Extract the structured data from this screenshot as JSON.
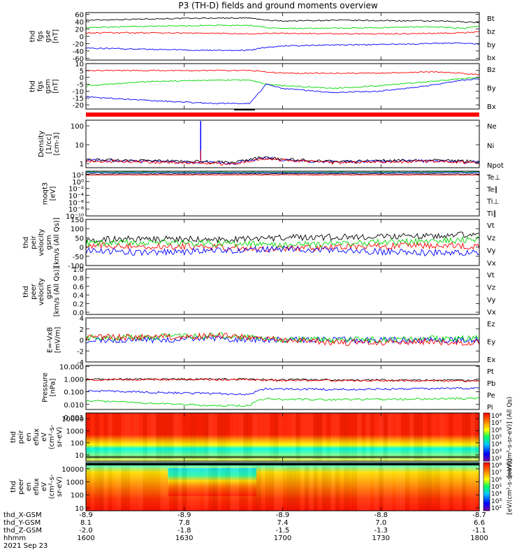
{
  "title": "P3 (TH-D) fields and ground moments overview",
  "colors": {
    "black": "#000000",
    "red": "#ff0000",
    "green": "#00d800",
    "blue": "#0000ff"
  },
  "time_axis": {
    "minutes": [
      0,
      30,
      60,
      90,
      120
    ],
    "row_labels": [
      "thd_X-GSM",
      "thd_Y-GSM",
      "thd_Z-GSM",
      "hhmm"
    ],
    "x_gsm": [
      "-8.9",
      "-8.9",
      "-8.9",
      "-8.8",
      "-8.7"
    ],
    "y_gsm": [
      "8.1",
      "7.8",
      "7.4",
      "7.0",
      "6.6"
    ],
    "z_gsm": [
      "-2.0",
      "-1.8",
      "-1.5",
      "-1.3",
      "-1.1"
    ],
    "hhmm": [
      "1600",
      "1630",
      "1700",
      "1730",
      "1800"
    ],
    "date": "2021 Sep 23"
  },
  "chart_data": [
    {
      "type": "line",
      "ylabel": [
        "thd",
        "fgs",
        "gse",
        "[nT]"
      ],
      "ylim": [
        -65,
        65
      ],
      "yticks": [
        "60",
        "40",
        "20",
        "0",
        "-20",
        "-40",
        "-60"
      ],
      "ytick_values": [
        60,
        40,
        20,
        0,
        -20,
        -40,
        -60
      ],
      "legend": [
        {
          "name": "Bt",
          "color": "#000000"
        },
        {
          "name": "bz",
          "color": "#ff0000"
        },
        {
          "name": "by",
          "color": "#00d800"
        },
        {
          "name": "bx",
          "color": "#0000ff"
        }
      ],
      "series": [
        {
          "name": "Bt",
          "color": "#000000",
          "x": [
            0,
            20,
            40,
            50,
            55,
            60,
            75,
            90,
            105,
            115,
            120
          ],
          "y": [
            44,
            48,
            50,
            50,
            44,
            42,
            44,
            43,
            42,
            40,
            38
          ]
        },
        {
          "name": "by",
          "color": "#00d800",
          "x": [
            0,
            20,
            40,
            50,
            55,
            60,
            75,
            90,
            105,
            115,
            120
          ],
          "y": [
            24,
            28,
            30,
            30,
            24,
            22,
            22,
            24,
            26,
            22,
            28
          ]
        },
        {
          "name": "bz",
          "color": "#ff0000",
          "x": [
            0,
            20,
            40,
            50,
            55,
            60,
            75,
            90,
            105,
            115,
            120
          ],
          "y": [
            10,
            10,
            8,
            7,
            8,
            8,
            7,
            7,
            8,
            10,
            12
          ]
        },
        {
          "name": "bx",
          "color": "#0000ff",
          "x": [
            0,
            20,
            40,
            50,
            55,
            60,
            75,
            90,
            105,
            115,
            120
          ],
          "y": [
            -32,
            -36,
            -38,
            -38,
            -30,
            -26,
            -24,
            -22,
            -20,
            -18,
            -22
          ]
        }
      ]
    },
    {
      "type": "line",
      "ylabel": [
        "thd",
        "fgs",
        "gsm",
        "[nT]"
      ],
      "ylim": [
        -23,
        10
      ],
      "yticks": [
        "10",
        "5",
        "0",
        "-5",
        "-10",
        "-15",
        "-20"
      ],
      "ytick_values": [
        10,
        5,
        0,
        -5,
        -10,
        -15,
        -20
      ],
      "legend": [
        {
          "name": "Bz",
          "color": "#ff0000"
        },
        {
          "name": "By",
          "color": "#00d800"
        },
        {
          "name": "Bx",
          "color": "#0000ff"
        }
      ],
      "series": [
        {
          "name": "Bz",
          "color": "#ff0000",
          "x": [
            0,
            20,
            40,
            50,
            55,
            60,
            75,
            90,
            105,
            115,
            120
          ],
          "y": [
            5,
            5,
            5,
            5,
            4,
            3,
            3,
            3,
            4,
            3,
            2
          ]
        },
        {
          "name": "By",
          "color": "#00d800",
          "x": [
            0,
            20,
            40,
            50,
            55,
            60,
            75,
            90,
            105,
            115,
            120
          ],
          "y": [
            -6,
            -3,
            -2,
            -2,
            -5,
            -6,
            -8,
            -6,
            -3,
            -1,
            0
          ]
        },
        {
          "name": "Bx",
          "color": "#0000ff",
          "x": [
            0,
            20,
            40,
            50,
            55,
            60,
            75,
            90,
            105,
            115,
            120
          ],
          "y": [
            -14,
            -17,
            -19,
            -19,
            -5,
            -8,
            -11,
            -10,
            -6,
            -2,
            -1
          ]
        }
      ]
    },
    {
      "type": "line",
      "ylabel": [
        "Density",
        "[1/cc]",
        "[cm-3]"
      ],
      "scale": "log",
      "ylim": [
        0.6,
        200
      ],
      "yticks": [
        "100",
        "10",
        "1"
      ],
      "ytick_values": [
        100,
        10,
        1
      ],
      "legend": [
        {
          "name": "Ne",
          "color": "#ff0000"
        },
        {
          "name": "Ni",
          "color": "#000000"
        },
        {
          "name": "Npot",
          "color": "#0000ff"
        }
      ],
      "series": [
        {
          "name": "Npot",
          "color": "#0000ff",
          "x": [
            0,
            20,
            35,
            45,
            55,
            60,
            75,
            90,
            105,
            120
          ],
          "y": [
            1.5,
            1.3,
            1.2,
            1.0,
            2.0,
            1.6,
            1.2,
            1.3,
            1.4,
            1.2
          ]
        },
        {
          "name": "Ni",
          "color": "#000000",
          "x": [
            0,
            20,
            35,
            45,
            55,
            60,
            75,
            90,
            105,
            120
          ],
          "y": [
            1.6,
            1.4,
            1.3,
            1.1,
            2.2,
            1.7,
            1.3,
            1.4,
            1.5,
            1.3
          ]
        },
        {
          "name": "Ne",
          "color": "#ff0000",
          "x": [
            0,
            20,
            35,
            45,
            55,
            60,
            75,
            90,
            105,
            120
          ],
          "y": [
            1.4,
            1.2,
            1.1,
            0.9,
            1.9,
            1.5,
            1.1,
            1.2,
            1.3,
            1.1
          ]
        }
      ],
      "spike": {
        "x": 35,
        "y": 180
      }
    },
    {
      "type": "line",
      "ylabel": [
        "moqt3",
        "[eV]"
      ],
      "scale": "log",
      "ylim": [
        1e-10,
        1000.0
      ],
      "yticks": [
        "10²",
        "10⁰",
        "10⁻²",
        "10⁻⁴",
        "10⁻⁶",
        "10⁻⁸",
        "10⁻¹⁰"
      ],
      "ytick_values": [
        100,
        1,
        0.01,
        0.0001,
        1e-06,
        1e-08,
        1e-10
      ],
      "legend": [
        {
          "name": "Te⊥",
          "color": "#ff0000"
        },
        {
          "name": "Te∥",
          "color": "#000000"
        },
        {
          "name": "Ti⊥",
          "color": "#0000ff"
        },
        {
          "name": "Ti∥",
          "color": "#00d800"
        }
      ],
      "series": [
        {
          "name": "Ti∥",
          "color": "#00d800",
          "x": [
            0,
            60,
            120
          ],
          "y": [
            600,
            500,
            600
          ]
        },
        {
          "name": "Ti⊥",
          "color": "#0000ff",
          "x": [
            0,
            60,
            120
          ],
          "y": [
            400,
            350,
            400
          ]
        },
        {
          "name": "Te∥",
          "color": "#000000",
          "x": [
            0,
            60,
            120
          ],
          "y": [
            150,
            180,
            150
          ]
        },
        {
          "name": "Te⊥",
          "color": "#ff0000",
          "x": [
            0,
            60,
            120
          ],
          "y": [
            80,
            90,
            80
          ]
        }
      ]
    },
    {
      "type": "line",
      "ylabel": [
        "thd",
        "peir",
        "velocity",
        "gsm",
        "[km/s (All Qs)]"
      ],
      "ylim": [
        -100,
        150
      ],
      "yticks": [
        "150",
        "100",
        "50",
        "0",
        "-50",
        "-100"
      ],
      "ytick_values": [
        150,
        100,
        50,
        0,
        -50,
        -100
      ],
      "legend": [
        {
          "name": "Vt",
          "color": "#000000"
        },
        {
          "name": "Vz",
          "color": "#ff0000"
        },
        {
          "name": "Vy",
          "color": "#00d800"
        },
        {
          "name": "Vx",
          "color": "#0000ff"
        }
      ],
      "series": [
        {
          "name": "Vt",
          "color": "#000000",
          "x": [
            0,
            20,
            40,
            60,
            80,
            100,
            120
          ],
          "y": [
            40,
            45,
            40,
            50,
            55,
            60,
            70
          ]
        },
        {
          "name": "Vz",
          "color": "#ff0000",
          "x": [
            0,
            20,
            40,
            60,
            80,
            100,
            120
          ],
          "y": [
            10,
            5,
            0,
            -10,
            0,
            10,
            5
          ]
        },
        {
          "name": "Vy",
          "color": "#00d800",
          "x": [
            0,
            20,
            40,
            60,
            80,
            100,
            120
          ],
          "y": [
            20,
            25,
            20,
            10,
            20,
            30,
            40
          ]
        },
        {
          "name": "Vx",
          "color": "#0000ff",
          "x": [
            0,
            20,
            40,
            60,
            80,
            100,
            120
          ],
          "y": [
            -20,
            -30,
            -20,
            -10,
            -20,
            -30,
            -30
          ]
        }
      ]
    },
    {
      "type": "line",
      "ylabel": [
        "thd",
        "peer",
        "velocity",
        "gsm",
        "[km/s (All Qs)]"
      ],
      "ylim": [
        -0.05,
        1.0
      ],
      "yticks": [
        "1.0",
        "0.8",
        "0.6",
        "0.4",
        "0.2",
        "0.0"
      ],
      "ytick_values": [
        1.0,
        0.8,
        0.6,
        0.4,
        0.2,
        0.0
      ],
      "legend": [
        {
          "name": "Vt",
          "color": "#000000"
        },
        {
          "name": "Vz",
          "color": "#ff0000"
        },
        {
          "name": "Vy",
          "color": "#00d800"
        },
        {
          "name": "Vx",
          "color": "#0000ff"
        }
      ],
      "series": []
    },
    {
      "type": "line",
      "ylabel": [
        "E=-VxB",
        "[mV/m]"
      ],
      "ylim": [
        -4,
        4
      ],
      "yticks": [
        "4",
        "2",
        "0",
        "-2",
        "-4"
      ],
      "ytick_values": [
        4,
        2,
        0,
        -2,
        -4
      ],
      "legend": [
        {
          "name": "Ez",
          "color": "#ff0000"
        },
        {
          "name": "Ey",
          "color": "#00d800"
        },
        {
          "name": "Ex",
          "color": "#0000ff"
        }
      ],
      "series": [
        {
          "name": "Ex",
          "color": "#0000ff",
          "x": [
            0,
            20,
            40,
            60,
            80,
            100,
            120
          ],
          "y": [
            0,
            0,
            0.2,
            0,
            0,
            0,
            0
          ]
        },
        {
          "name": "Ey",
          "color": "#00d800",
          "x": [
            0,
            20,
            40,
            60,
            80,
            100,
            120
          ],
          "y": [
            0.5,
            0.5,
            0.8,
            0,
            0,
            0.2,
            0.3
          ]
        },
        {
          "name": "Ez",
          "color": "#ff0000",
          "x": [
            0,
            20,
            40,
            60,
            80,
            100,
            120
          ],
          "y": [
            0.5,
            0.5,
            0.8,
            0,
            -0.5,
            -0.3,
            -0.5
          ]
        }
      ]
    },
    {
      "type": "line",
      "ylabel": [
        "Pressure",
        "[nPa]"
      ],
      "scale": "log",
      "ylim": [
        0.004,
        12
      ],
      "yticks": [
        "10.000",
        "1.000",
        "0.100",
        "0.010",
        "0.001"
      ],
      "ytick_values": [
        10,
        1,
        0.1,
        0.01,
        0.001
      ],
      "legend": [
        {
          "name": "Pt",
          "color": "#000000"
        },
        {
          "name": "Pb",
          "color": "#ff0000"
        },
        {
          "name": "Pe",
          "color": "#00d800"
        },
        {
          "name": "Pi",
          "color": "#0000ff"
        }
      ],
      "series": [
        {
          "name": "Pt",
          "color": "#000000",
          "x": [
            0,
            50,
            55,
            60,
            120
          ],
          "y": [
            1.0,
            1.0,
            0.9,
            0.9,
            0.8
          ]
        },
        {
          "name": "Pb",
          "color": "#ff0000",
          "x": [
            0,
            50,
            55,
            60,
            120
          ],
          "y": [
            0.9,
            0.95,
            0.8,
            0.8,
            0.7
          ]
        },
        {
          "name": "Pi",
          "color": "#0000ff",
          "x": [
            0,
            20,
            40,
            50,
            55,
            60,
            90,
            120
          ],
          "y": [
            0.12,
            0.09,
            0.07,
            0.06,
            0.18,
            0.16,
            0.16,
            0.2
          ]
        },
        {
          "name": "Pe",
          "color": "#00d800",
          "x": [
            0,
            20,
            40,
            50,
            55,
            60,
            90,
            120
          ],
          "y": [
            0.02,
            0.012,
            0.008,
            0.008,
            0.03,
            0.025,
            0.025,
            0.03
          ]
        }
      ]
    },
    {
      "type": "heatmap",
      "ylabel": [
        "thd",
        "peir",
        "en",
        "eflux",
        "eV",
        "(cm²-s-",
        "sr-eV)"
      ],
      "scale": "log",
      "ylim": [
        3,
        30000
      ],
      "yticks": [
        "10000",
        "1000",
        "100",
        "10"
      ],
      "ytick_values": [
        10000,
        1000,
        100,
        10
      ],
      "colorbar": {
        "labels": [
          "10⁸",
          "10⁷",
          "10⁶",
          "10⁵",
          "10⁴",
          "10³",
          "10²"
        ],
        "unit": "[eV/(cm²-s-sr-eV)] (All Qs)"
      }
    },
    {
      "type": "heatmap",
      "ylabel": [
        "thd",
        "peer",
        "en",
        "eflux",
        "eV",
        "(cm²-s-",
        "sr-eV)"
      ],
      "scale": "log",
      "ylim": [
        6,
        30000
      ],
      "yticks": [
        "10000",
        "1000",
        "100",
        "10"
      ],
      "ytick_values": [
        10000,
        1000,
        100,
        10
      ],
      "colorbar": {
        "labels": [
          "10⁸",
          "10⁷",
          "10⁶",
          "10⁵",
          "10⁴",
          "10³",
          "10²"
        ],
        "unit": "[eV/(cm²-s-sr-eV)]"
      }
    }
  ]
}
